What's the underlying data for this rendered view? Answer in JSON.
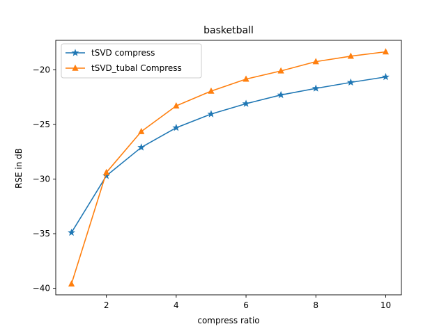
{
  "chart_data": {
    "type": "line",
    "title": "basketball",
    "xlabel": "compress ratio",
    "ylabel": "RSE in dB",
    "xlim": [
      0.55,
      10.45
    ],
    "ylim": [
      -40.6,
      -17.3
    ],
    "grid": false,
    "legend_position": "top-left",
    "x_ticks": [
      2,
      4,
      6,
      8,
      10
    ],
    "x_tick_labels": [
      "2",
      "4",
      "6",
      "8",
      "10"
    ],
    "y_ticks": [
      -40,
      -35,
      -30,
      -25,
      -20
    ],
    "y_tick_labels": [
      "−40",
      "−35",
      "−30",
      "−25",
      "−20"
    ],
    "x": [
      1,
      2,
      3,
      4,
      5,
      6,
      7,
      8,
      9,
      10
    ],
    "series": [
      {
        "name": "tSVD compress",
        "color": "#1f77b4",
        "marker": "star",
        "values": [
          -34.9,
          -29.7,
          -27.1,
          -25.3,
          -24.05,
          -23.1,
          -22.3,
          -21.7,
          -21.15,
          -20.65
        ]
      },
      {
        "name": "tSVD_tubal Compress",
        "color": "#ff7f0e",
        "marker": "triangle-up",
        "values": [
          -39.6,
          -29.4,
          -25.65,
          -23.3,
          -21.95,
          -20.85,
          -20.1,
          -19.25,
          -18.75,
          -18.35
        ]
      }
    ]
  }
}
